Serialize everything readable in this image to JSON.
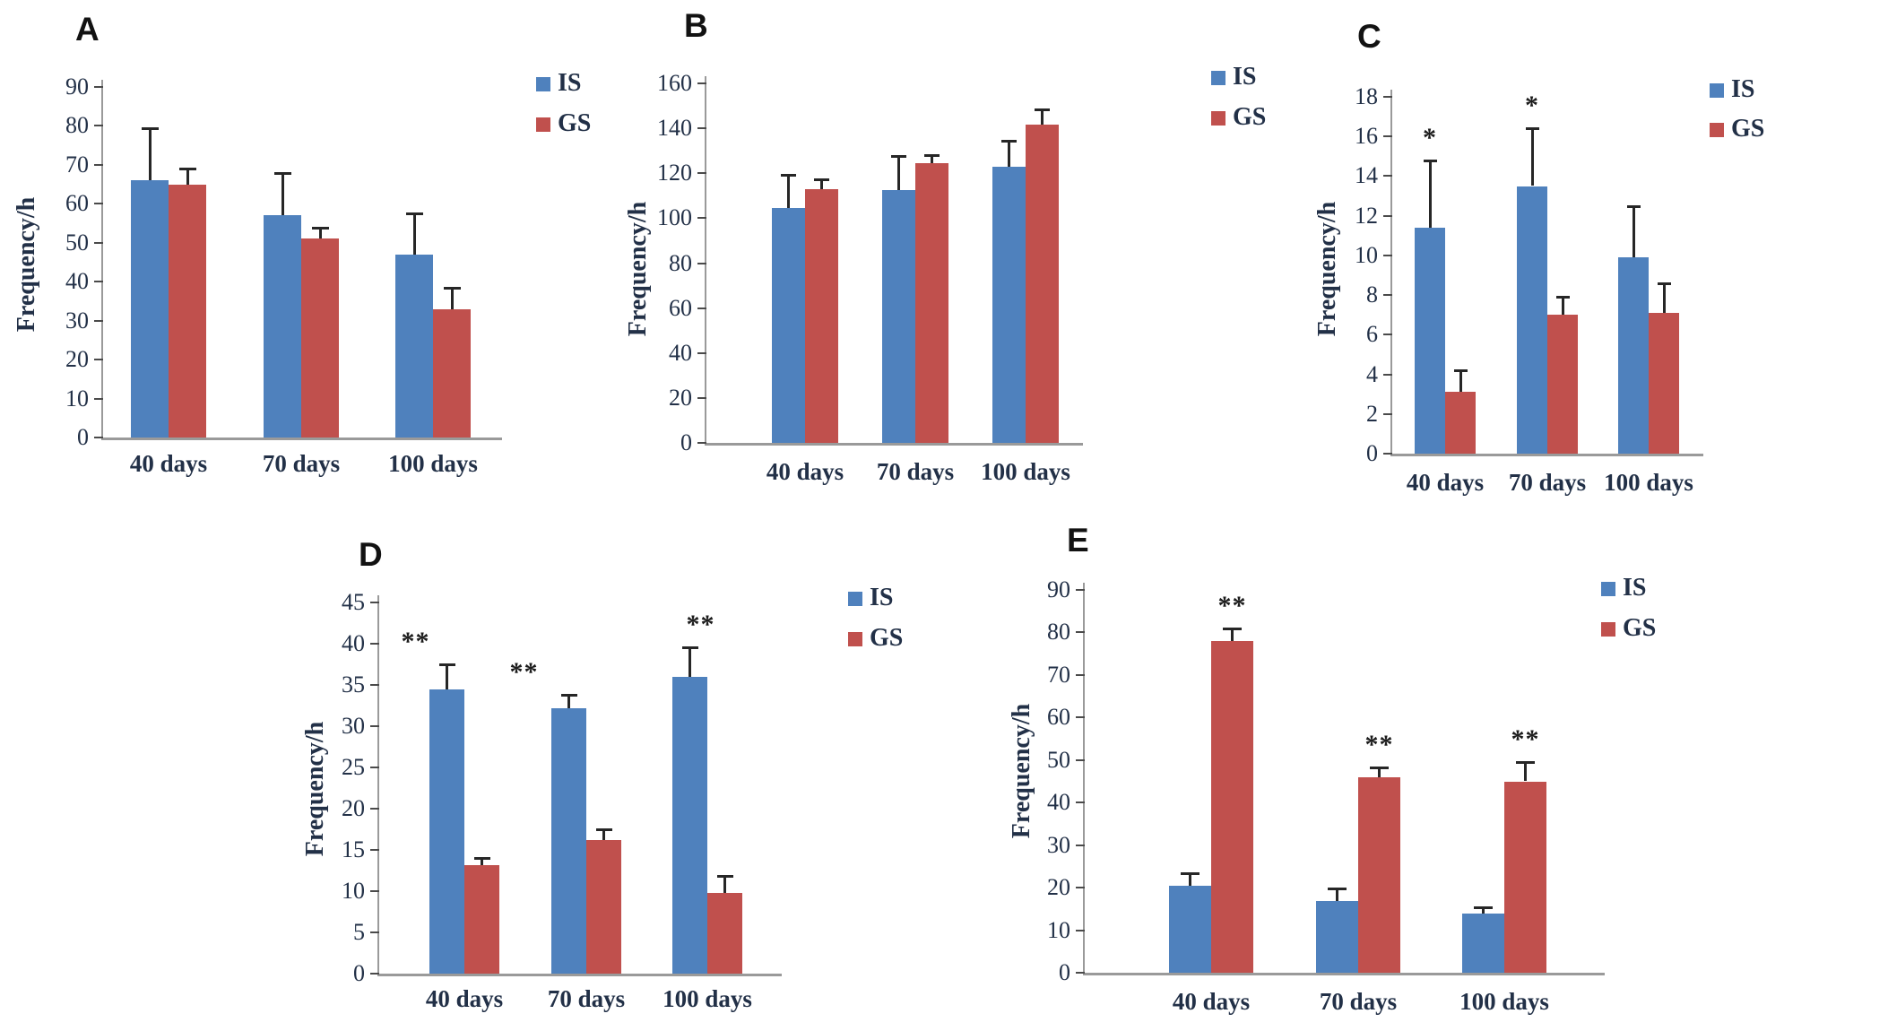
{
  "figure": {
    "background": "#ffffff",
    "ylabel_text": "Frequency/h"
  },
  "colors": {
    "is_series": "#4F81BD",
    "gs_series": "#C0504D",
    "axis_line": "#9a9a9a",
    "text": "#223047",
    "error_bar": "#262626",
    "star": "#1b1b1b"
  },
  "legend": {
    "is_label": "IS",
    "gs_label": "GS"
  },
  "chart_data": [
    {
      "type": "bar",
      "title": "A",
      "ylabel": "Frequency/h",
      "xlabel": "",
      "categories": [
        "40 days",
        "70 days",
        "100 days"
      ],
      "ylim": [
        0,
        90
      ],
      "ytick_step": 10,
      "grid": false,
      "legend_position": "right-top",
      "series": [
        {
          "name": "IS",
          "values": [
            66,
            57,
            47
          ],
          "errors": [
            13.5,
            11,
            10.5
          ],
          "stars": [
            "",
            "",
            ""
          ]
        },
        {
          "name": "GS",
          "values": [
            65,
            51,
            33
          ],
          "errors": [
            4,
            2.8,
            5.5
          ],
          "stars": [
            "",
            "",
            ""
          ]
        }
      ]
    },
    {
      "type": "bar",
      "title": "B",
      "ylabel": "Frequency/h",
      "xlabel": "",
      "categories": [
        "40 days",
        "70 days",
        "100 days"
      ],
      "ylim": [
        0,
        160
      ],
      "ytick_step": 20,
      "grid": false,
      "legend_position": "right-top",
      "series": [
        {
          "name": "IS",
          "values": [
            104.5,
            112.5,
            123
          ],
          "errors": [
            15,
            15,
            11.5
          ],
          "stars": [
            "",
            "",
            ""
          ]
        },
        {
          "name": "GS",
          "values": [
            113,
            124.5,
            141.5
          ],
          "errors": [
            4.5,
            3.5,
            7
          ],
          "stars": [
            "",
            "",
            ""
          ]
        }
      ]
    },
    {
      "type": "bar",
      "title": "C",
      "ylabel": "Frequency/h",
      "xlabel": "",
      "categories": [
        "40 days",
        "70 days",
        "100 days"
      ],
      "ylim": [
        0,
        18
      ],
      "ytick_step": 2,
      "grid": false,
      "legend_position": "right-top",
      "series": [
        {
          "name": "IS",
          "values": [
            11.4,
            13.5,
            9.9
          ],
          "errors": [
            3.4,
            2.9,
            2.6
          ],
          "stars": [
            "*",
            "*",
            ""
          ]
        },
        {
          "name": "GS",
          "values": [
            3.1,
            7,
            7.1
          ],
          "errors": [
            1.1,
            0.9,
            1.5
          ],
          "stars": [
            "",
            "",
            ""
          ]
        }
      ]
    },
    {
      "type": "bar",
      "title": "D",
      "ylabel": "Frequency/h",
      "xlabel": "",
      "categories": [
        "40 days",
        "70 days",
        "100 days"
      ],
      "ylim": [
        0,
        45
      ],
      "ytick_step": 5,
      "grid": false,
      "legend_position": "right-top",
      "series": [
        {
          "name": "IS",
          "values": [
            34.5,
            32.2,
            36
          ],
          "errors": [
            3,
            1.6,
            3.6
          ],
          "stars": [
            "**",
            "**",
            "**"
          ]
        },
        {
          "name": "GS",
          "values": [
            13.2,
            16.2,
            9.8
          ],
          "errors": [
            0.8,
            1.3,
            2
          ],
          "stars": [
            "",
            "",
            ""
          ]
        }
      ]
    },
    {
      "type": "bar",
      "title": "E",
      "ylabel": "Frequency/h",
      "xlabel": "",
      "categories": [
        "40 days",
        "70 days",
        "100 days"
      ],
      "ylim": [
        0,
        90
      ],
      "ytick_step": 10,
      "grid": false,
      "legend_position": "right-top",
      "series": [
        {
          "name": "IS",
          "values": [
            20.5,
            16.8,
            14
          ],
          "errors": [
            3,
            3,
            1.3
          ],
          "stars": [
            "",
            "",
            ""
          ]
        },
        {
          "name": "GS",
          "values": [
            78,
            46,
            45
          ],
          "errors": [
            3,
            2.2,
            4.5
          ],
          "stars": [
            "**",
            "**",
            "**"
          ]
        }
      ]
    }
  ]
}
